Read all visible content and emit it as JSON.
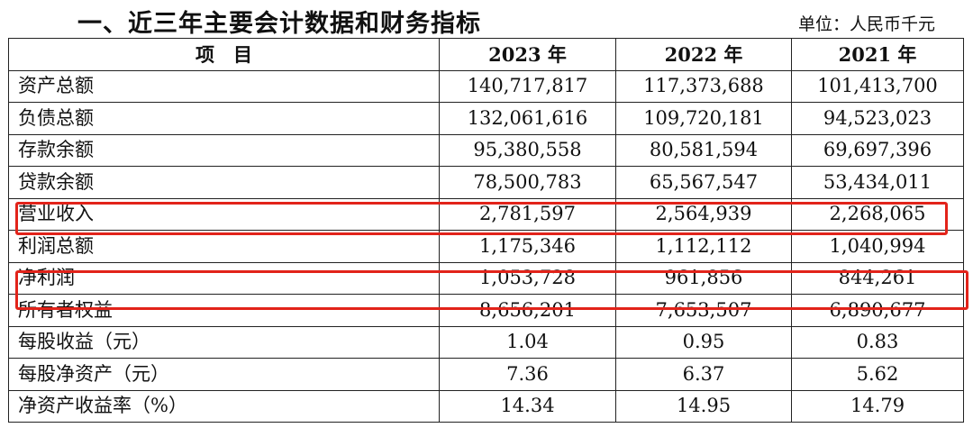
{
  "title": "一、近三年主要会计数据和财务指标",
  "unit": "单位：人民币千元",
  "headers": [
    "项　目",
    "2023 年",
    "2022 年",
    "2021 年"
  ],
  "rows": [
    {
      "label": "资产总额",
      "values": [
        "140,717,817",
        "117,373,688",
        "101,413,700"
      ]
    },
    {
      "label": "负债总额",
      "values": [
        "132,061,616",
        "109,720,181",
        "94,523,023"
      ]
    },
    {
      "label": "存款余额",
      "values": [
        "95,380,558",
        "80,581,594",
        "69,697,396"
      ]
    },
    {
      "label": "贷款余额",
      "values": [
        "78,500,783",
        "65,567,547",
        "53,434,011"
      ]
    },
    {
      "label": "营业收入",
      "values": [
        "2,781,597",
        "2,564,939",
        "2,268,065"
      ]
    },
    {
      "label": "利润总额",
      "values": [
        "1,175,346",
        "1,112,112",
        "1,040,994"
      ]
    },
    {
      "label": "净利润",
      "values": [
        "1,053,728",
        "961,856",
        "844,261"
      ]
    },
    {
      "label": "所有者权益",
      "values": [
        "8,656,201",
        "7,653,507",
        "6,890,677"
      ]
    },
    {
      "label": "每股收益（元）",
      "values": [
        "1.04",
        "0.95",
        "0.83"
      ]
    },
    {
      "label": "每股净资产（元）",
      "values": [
        "7.36",
        "6.37",
        "5.62"
      ]
    },
    {
      "label": "净资产收益率（%）",
      "values": [
        "14.34",
        "14.95",
        "14.79"
      ]
    }
  ],
  "highlight_color": "#e2231a"
}
